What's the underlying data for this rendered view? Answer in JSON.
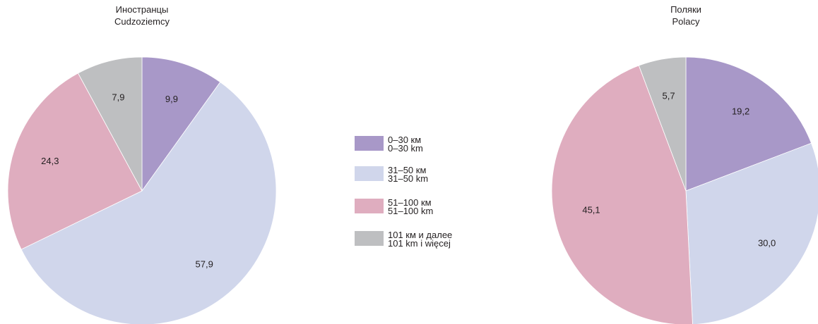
{
  "chart_data": [
    {
      "type": "pie",
      "title": "Иностранцы",
      "subtitle": "Cudzoziemcy",
      "categories": [
        "0–30 км / 0–30 km",
        "31–50 км / 31–50 km",
        "51–100 км / 51–100 km",
        "101 км и далее / 101 km i więcej"
      ],
      "values": [
        9.9,
        57.9,
        24.3,
        7.9
      ],
      "value_labels": [
        "9,9",
        "57,9",
        "24,3",
        "7,9"
      ],
      "start": "12 o'clock",
      "direction": "clockwise"
    },
    {
      "type": "pie",
      "title": "Поляки",
      "subtitle": "Polacy",
      "categories": [
        "0–30 км / 0–30 km",
        "31–50 км / 31–50 km",
        "51–100 км / 51–100 km",
        "101 км и далее / 101 km i więcej"
      ],
      "values": [
        19.2,
        30.0,
        45.1,
        5.7
      ],
      "value_labels": [
        "19,2",
        "30,0",
        "45,1",
        "5,7"
      ],
      "start": "12 o'clock",
      "direction": "clockwise"
    }
  ],
  "legend": {
    "placement": "center",
    "items": [
      {
        "line1": "0–30 км",
        "line2": "0–30 km",
        "color": "#a898c8"
      },
      {
        "line1": "31–50 км",
        "line2": "31–50 km",
        "color": "#d0d6eb"
      },
      {
        "line1": "51–100 км",
        "line2": "51–100 km",
        "color": "#dfadbf"
      },
      {
        "line1": "101 км и далее",
        "line2": "101 km i więcej",
        "color": "#bebfc1"
      }
    ]
  }
}
